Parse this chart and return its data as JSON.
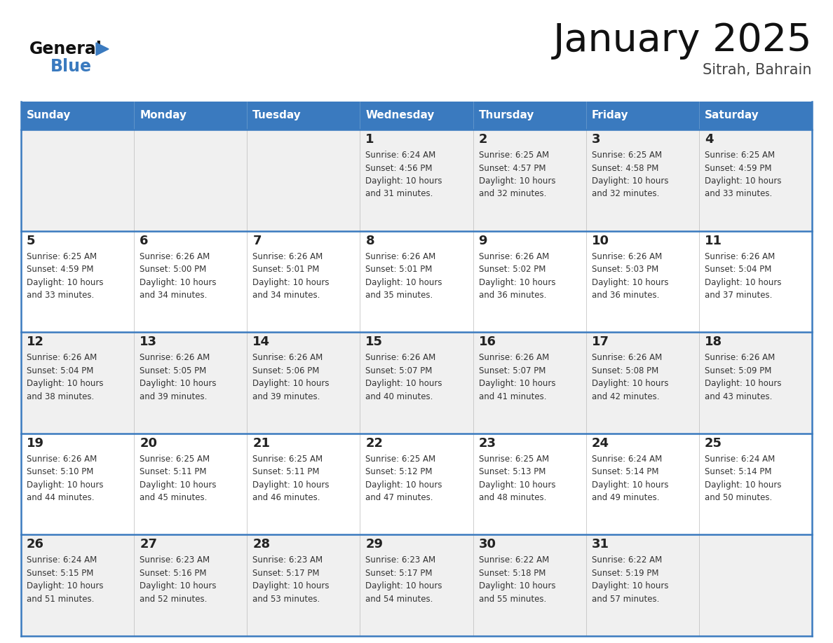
{
  "title": "January 2025",
  "subtitle": "Sitrah, Bahrain",
  "days_of_week": [
    "Sunday",
    "Monday",
    "Tuesday",
    "Wednesday",
    "Thursday",
    "Friday",
    "Saturday"
  ],
  "header_bg": "#3a7abf",
  "header_text": "#ffffff",
  "row_bg_odd": "#f0f0f0",
  "row_bg_even": "#ffffff",
  "border_color": "#3a7abf",
  "day_num_color": "#222222",
  "text_color": "#333333",
  "title_color": "#111111",
  "subtitle_color": "#444444",
  "logo_general_color": "#111111",
  "logo_blue_color": "#3a7abf",
  "logo_triangle_color": "#3a7abf",
  "calendar": [
    [
      {
        "day": "",
        "info": ""
      },
      {
        "day": "",
        "info": ""
      },
      {
        "day": "",
        "info": ""
      },
      {
        "day": "1",
        "info": "Sunrise: 6:24 AM\nSunset: 4:56 PM\nDaylight: 10 hours\nand 31 minutes."
      },
      {
        "day": "2",
        "info": "Sunrise: 6:25 AM\nSunset: 4:57 PM\nDaylight: 10 hours\nand 32 minutes."
      },
      {
        "day": "3",
        "info": "Sunrise: 6:25 AM\nSunset: 4:58 PM\nDaylight: 10 hours\nand 32 minutes."
      },
      {
        "day": "4",
        "info": "Sunrise: 6:25 AM\nSunset: 4:59 PM\nDaylight: 10 hours\nand 33 minutes."
      }
    ],
    [
      {
        "day": "5",
        "info": "Sunrise: 6:25 AM\nSunset: 4:59 PM\nDaylight: 10 hours\nand 33 minutes."
      },
      {
        "day": "6",
        "info": "Sunrise: 6:26 AM\nSunset: 5:00 PM\nDaylight: 10 hours\nand 34 minutes."
      },
      {
        "day": "7",
        "info": "Sunrise: 6:26 AM\nSunset: 5:01 PM\nDaylight: 10 hours\nand 34 minutes."
      },
      {
        "day": "8",
        "info": "Sunrise: 6:26 AM\nSunset: 5:01 PM\nDaylight: 10 hours\nand 35 minutes."
      },
      {
        "day": "9",
        "info": "Sunrise: 6:26 AM\nSunset: 5:02 PM\nDaylight: 10 hours\nand 36 minutes."
      },
      {
        "day": "10",
        "info": "Sunrise: 6:26 AM\nSunset: 5:03 PM\nDaylight: 10 hours\nand 36 minutes."
      },
      {
        "day": "11",
        "info": "Sunrise: 6:26 AM\nSunset: 5:04 PM\nDaylight: 10 hours\nand 37 minutes."
      }
    ],
    [
      {
        "day": "12",
        "info": "Sunrise: 6:26 AM\nSunset: 5:04 PM\nDaylight: 10 hours\nand 38 minutes."
      },
      {
        "day": "13",
        "info": "Sunrise: 6:26 AM\nSunset: 5:05 PM\nDaylight: 10 hours\nand 39 minutes."
      },
      {
        "day": "14",
        "info": "Sunrise: 6:26 AM\nSunset: 5:06 PM\nDaylight: 10 hours\nand 39 minutes."
      },
      {
        "day": "15",
        "info": "Sunrise: 6:26 AM\nSunset: 5:07 PM\nDaylight: 10 hours\nand 40 minutes."
      },
      {
        "day": "16",
        "info": "Sunrise: 6:26 AM\nSunset: 5:07 PM\nDaylight: 10 hours\nand 41 minutes."
      },
      {
        "day": "17",
        "info": "Sunrise: 6:26 AM\nSunset: 5:08 PM\nDaylight: 10 hours\nand 42 minutes."
      },
      {
        "day": "18",
        "info": "Sunrise: 6:26 AM\nSunset: 5:09 PM\nDaylight: 10 hours\nand 43 minutes."
      }
    ],
    [
      {
        "day": "19",
        "info": "Sunrise: 6:26 AM\nSunset: 5:10 PM\nDaylight: 10 hours\nand 44 minutes."
      },
      {
        "day": "20",
        "info": "Sunrise: 6:25 AM\nSunset: 5:11 PM\nDaylight: 10 hours\nand 45 minutes."
      },
      {
        "day": "21",
        "info": "Sunrise: 6:25 AM\nSunset: 5:11 PM\nDaylight: 10 hours\nand 46 minutes."
      },
      {
        "day": "22",
        "info": "Sunrise: 6:25 AM\nSunset: 5:12 PM\nDaylight: 10 hours\nand 47 minutes."
      },
      {
        "day": "23",
        "info": "Sunrise: 6:25 AM\nSunset: 5:13 PM\nDaylight: 10 hours\nand 48 minutes."
      },
      {
        "day": "24",
        "info": "Sunrise: 6:24 AM\nSunset: 5:14 PM\nDaylight: 10 hours\nand 49 minutes."
      },
      {
        "day": "25",
        "info": "Sunrise: 6:24 AM\nSunset: 5:14 PM\nDaylight: 10 hours\nand 50 minutes."
      }
    ],
    [
      {
        "day": "26",
        "info": "Sunrise: 6:24 AM\nSunset: 5:15 PM\nDaylight: 10 hours\nand 51 minutes."
      },
      {
        "day": "27",
        "info": "Sunrise: 6:23 AM\nSunset: 5:16 PM\nDaylight: 10 hours\nand 52 minutes."
      },
      {
        "day": "28",
        "info": "Sunrise: 6:23 AM\nSunset: 5:17 PM\nDaylight: 10 hours\nand 53 minutes."
      },
      {
        "day": "29",
        "info": "Sunrise: 6:23 AM\nSunset: 5:17 PM\nDaylight: 10 hours\nand 54 minutes."
      },
      {
        "day": "30",
        "info": "Sunrise: 6:22 AM\nSunset: 5:18 PM\nDaylight: 10 hours\nand 55 minutes."
      },
      {
        "day": "31",
        "info": "Sunrise: 6:22 AM\nSunset: 5:19 PM\nDaylight: 10 hours\nand 57 minutes."
      },
      {
        "day": "",
        "info": ""
      }
    ]
  ]
}
